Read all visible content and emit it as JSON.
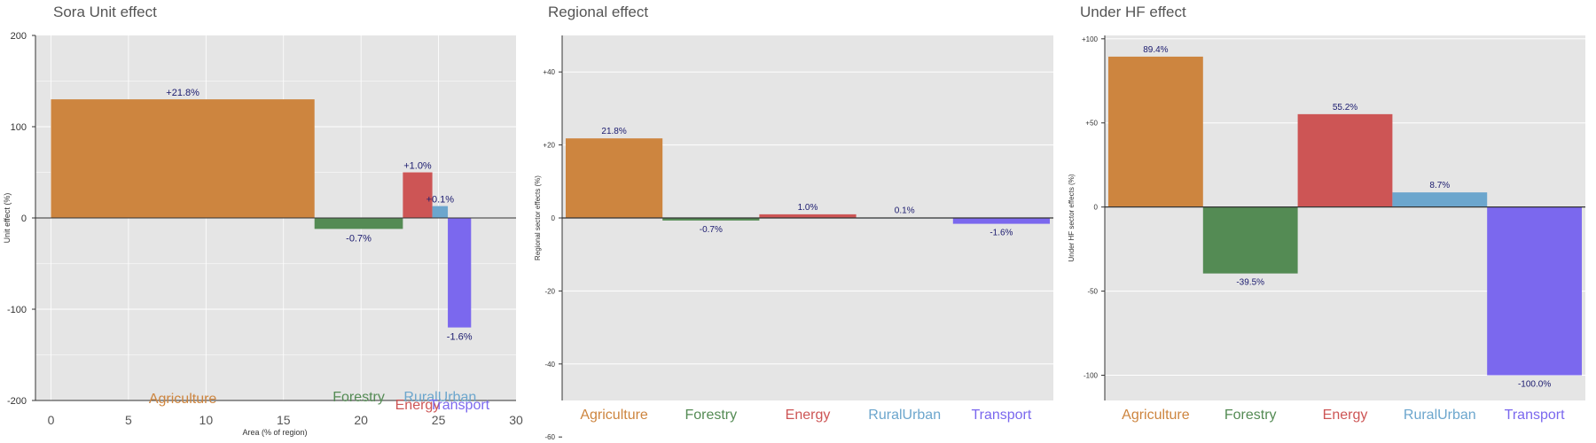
{
  "chart_data": [
    {
      "type": "bar",
      "title": "Sora Unit effect",
      "xlabel": "Area (% of region)",
      "ylabel": "Unit effect (%)",
      "ylim": [
        -200,
        200
      ],
      "xlim": [
        -1,
        30
      ],
      "yticks": [
        -200,
        -100,
        0,
        100,
        200
      ],
      "ytick_labels": [
        "-200",
        "-100",
        "0",
        "100",
        "200"
      ],
      "xticks": [
        0,
        5,
        10,
        15,
        20,
        25,
        30
      ],
      "xtick_labels": [
        "0",
        "5",
        "10",
        "15",
        "20",
        "25",
        "30"
      ],
      "grid": true,
      "bars": [
        {
          "category": "Agriculture",
          "x_start": 0,
          "x_end": 17,
          "value": 130,
          "label": "+21.8%",
          "color": "#CD853F"
        },
        {
          "category": "Forestry",
          "x_start": 17,
          "x_end": 22.7,
          "value": -12,
          "label": "-0.7%",
          "color": "#548B54"
        },
        {
          "category": "Energy",
          "x_start": 22.7,
          "x_end": 24.6,
          "value": 50,
          "label": "+1.0%",
          "color": "#CD5555"
        },
        {
          "category": "RuralUrban",
          "x_start": 24.6,
          "x_end": 25.6,
          "value": 13,
          "label": "+0.1%",
          "color": "#6CA6CD"
        },
        {
          "category": "Transport",
          "x_start": 25.6,
          "x_end": 27.1,
          "value": -120,
          "label": "-1.6%",
          "color": "#7B68EE"
        }
      ]
    },
    {
      "type": "bar",
      "title": "Regional effect",
      "ylabel": "Regional sector effects (%)",
      "ylim": [
        -50,
        50
      ],
      "yticks": [
        -60,
        -40,
        -20,
        0,
        20,
        40
      ],
      "ytick_labels": [
        "-60",
        "-40",
        "-20",
        "0",
        "+20",
        "+40"
      ],
      "grid": true,
      "categories": [
        "Agriculture",
        "Forestry",
        "Energy",
        "RuralUrban",
        "Transport"
      ],
      "values": [
        21.8,
        -0.7,
        1.0,
        0.1,
        -1.6
      ],
      "labels": [
        "21.8%",
        "-0.7%",
        "1.0%",
        "0.1%",
        "-1.6%"
      ],
      "colors": [
        "#CD853F",
        "#548B54",
        "#CD5555",
        "#6CA6CD",
        "#7B68EE"
      ]
    },
    {
      "type": "bar",
      "title": "Under HF effect",
      "ylabel": "Under HF sector effects (%)",
      "ylim": [
        -115,
        102
      ],
      "yticks": [
        -100,
        -50,
        0,
        50,
        100
      ],
      "ytick_labels": [
        "-100",
        "-50",
        "0",
        "+50",
        "+100"
      ],
      "grid": true,
      "categories": [
        "Agriculture",
        "Forestry",
        "Energy",
        "RuralUrban",
        "Transport"
      ],
      "values": [
        89.4,
        -39.5,
        55.2,
        8.7,
        -100.0
      ],
      "labels": [
        "89.4%",
        "-39.5%",
        "55.2%",
        "8.7%",
        "-100.0%"
      ],
      "colors": [
        "#CD853F",
        "#548B54",
        "#CD5555",
        "#6CA6CD",
        "#7B68EE"
      ]
    }
  ]
}
